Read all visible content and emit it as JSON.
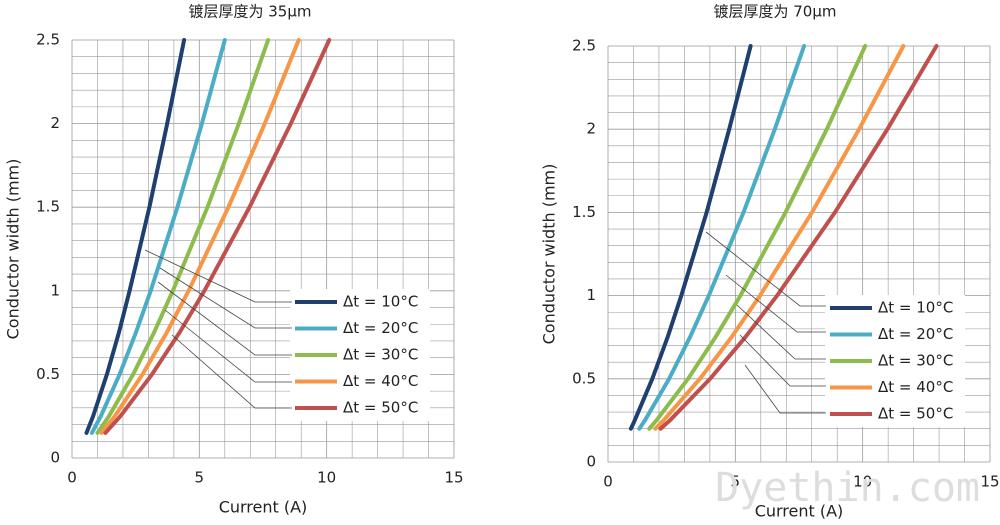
{
  "chart_data": [
    {
      "type": "line",
      "title": "镀层厚度为 35μm",
      "x_label": "Current (A)",
      "y_label": "Conductor width (mm)",
      "xlim": [
        0,
        15
      ],
      "ylim": [
        0,
        2.5
      ],
      "xticks": [
        0,
        5,
        10,
        15
      ],
      "yticks": [
        0,
        0.5,
        1,
        1.5,
        2,
        2.5
      ],
      "grid": true,
      "legend": "lower right",
      "series": [
        {
          "name": "Δt = 10°C",
          "color": "#1f3f6e",
          "x": [
            0.57,
            0.83,
            1.37,
            1.84,
            2.26,
            3.04,
            3.74,
            4.4
          ],
          "values": [
            0.15,
            0.25,
            0.5,
            0.75,
            1,
            1.5,
            2,
            2.5
          ]
        },
        {
          "name": "Δt = 20°C",
          "color": "#4bacc6",
          "x": [
            0.78,
            1.13,
            1.87,
            2.51,
            3.09,
            4.14,
            5.1,
            6.0
          ],
          "values": [
            0.15,
            0.25,
            0.5,
            0.75,
            1,
            1.5,
            2,
            2.5
          ]
        },
        {
          "name": "Δt = 30°C",
          "color": "#8cbd4c",
          "x": [
            1.0,
            1.45,
            2.4,
            3.22,
            3.96,
            5.32,
            6.55,
            7.7
          ],
          "values": [
            0.15,
            0.25,
            0.5,
            0.75,
            1,
            1.5,
            2,
            2.5
          ]
        },
        {
          "name": "Δt = 40°C",
          "color": "#f79646",
          "x": [
            1.16,
            1.68,
            2.77,
            3.72,
            4.58,
            6.14,
            7.57,
            8.9
          ],
          "values": [
            0.15,
            0.25,
            0.5,
            0.75,
            1,
            1.5,
            2,
            2.5
          ]
        },
        {
          "name": "Δt = 50°C",
          "color": "#c0504d",
          "x": [
            1.31,
            1.9,
            3.14,
            4.22,
            5.2,
            6.97,
            8.59,
            10.1
          ],
          "values": [
            0.15,
            0.25,
            0.5,
            0.75,
            1,
            1.5,
            2,
            2.5
          ]
        }
      ]
    },
    {
      "type": "line",
      "title": "镀层厚度为 70μm",
      "x_label": "Current (A)",
      "y_label": "Conductor width (mm)",
      "xlim": [
        0,
        15
      ],
      "ylim": [
        0,
        2.5
      ],
      "xticks": [
        0,
        5,
        10,
        15
      ],
      "yticks": [
        0,
        0.5,
        1,
        1.5,
        2,
        2.5
      ],
      "grid": true,
      "legend": "lower right",
      "series": [
        {
          "name": "Δt = 10°C",
          "color": "#1f3f6e",
          "x": [
            0.9,
            1.05,
            1.74,
            2.34,
            2.88,
            3.87,
            4.76,
            5.6
          ],
          "values": [
            0.2,
            0.25,
            0.5,
            0.75,
            1,
            1.5,
            2,
            2.5
          ]
        },
        {
          "name": "Δt = 20°C",
          "color": "#4bacc6",
          "x": [
            1.23,
            1.45,
            2.4,
            3.22,
            3.96,
            5.32,
            6.55,
            7.7
          ],
          "values": [
            0.2,
            0.25,
            0.5,
            0.75,
            1,
            1.5,
            2,
            2.5
          ]
        },
        {
          "name": "Δt = 30°C",
          "color": "#8cbd4c",
          "x": [
            1.62,
            1.9,
            3.14,
            4.22,
            5.2,
            6.97,
            8.59,
            10.1
          ],
          "values": [
            0.2,
            0.25,
            0.5,
            0.75,
            1,
            1.5,
            2,
            2.5
          ]
        },
        {
          "name": "Δt = 40°C",
          "color": "#f79646",
          "x": [
            1.86,
            2.18,
            3.61,
            4.85,
            5.97,
            8.01,
            9.86,
            11.6
          ],
          "values": [
            0.2,
            0.25,
            0.5,
            0.75,
            1,
            1.5,
            2,
            2.5
          ]
        },
        {
          "name": "Δt = 50°C",
          "color": "#c0504d",
          "x": [
            2.06,
            2.43,
            4.01,
            5.39,
            6.64,
            8.91,
            10.97,
            12.9
          ],
          "values": [
            0.2,
            0.25,
            0.5,
            0.75,
            1,
            1.5,
            2,
            2.5
          ]
        }
      ]
    }
  ],
  "watermark": "Dyethin.com"
}
